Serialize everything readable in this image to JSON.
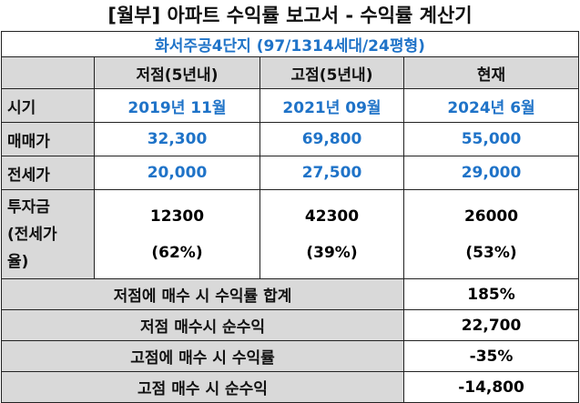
{
  "title": "[월부] 아파트 수익률 보고서 - 수익률 계산기",
  "subtitle": "화서주공4단지 (97/1314세대/24평형)",
  "columns": [
    "저점(5년내)",
    "고점(5년내)",
    "현재"
  ],
  "rows": [
    {
      "label": "시기",
      "values": [
        "2019년 11월",
        "2021년 09월",
        "2024년 6월"
      ]
    },
    {
      "label": "매매가",
      "values": [
        "32,300",
        "69,800",
        "55,000"
      ]
    },
    {
      "label": "전세가",
      "values": [
        "20,000",
        "27,500",
        "29,000"
      ]
    }
  ],
  "investment": {
    "label": "투자금\n(전세가\n율)",
    "values": [
      {
        "amount": "12300",
        "ratio": "(62%)"
      },
      {
        "amount": "42300",
        "ratio": "(39%)"
      },
      {
        "amount": "26000",
        "ratio": "(53%)"
      }
    ]
  },
  "summary": [
    {
      "label": "저점에 매수 시 수익률 합계",
      "value": "185%"
    },
    {
      "label": "저점 매수시 순수익",
      "value": "22,700"
    },
    {
      "label": "고점에 매수 시 수익률",
      "value": "-35%"
    },
    {
      "label": "고점 매수 시 순수익",
      "value": "-14,800"
    }
  ]
}
